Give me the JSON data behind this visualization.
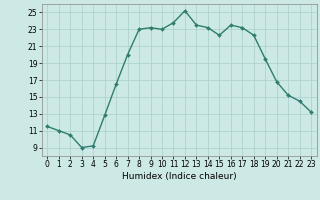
{
  "x": [
    0,
    1,
    2,
    3,
    4,
    5,
    6,
    7,
    8,
    9,
    10,
    11,
    12,
    13,
    14,
    15,
    16,
    17,
    18,
    19,
    20,
    21,
    22,
    23
  ],
  "y": [
    11.5,
    11.0,
    10.5,
    9.0,
    9.2,
    12.8,
    16.5,
    20.0,
    23.0,
    23.2,
    23.0,
    23.8,
    25.2,
    23.5,
    23.2,
    22.3,
    23.5,
    23.2,
    22.3,
    19.5,
    16.8,
    15.2,
    14.5,
    13.2
  ],
  "line_color": "#2e7d6e",
  "marker": "D",
  "marker_size": 2,
  "bg_color": "#cce9e5",
  "grid_color": "#aacfcc",
  "xlabel": "Humidex (Indice chaleur)",
  "ylim": [
    8,
    26
  ],
  "xlim": [
    -0.5,
    23.5
  ],
  "yticks": [
    9,
    11,
    13,
    15,
    17,
    19,
    21,
    23,
    25
  ],
  "xticks": [
    0,
    1,
    2,
    3,
    4,
    5,
    6,
    7,
    8,
    9,
    10,
    11,
    12,
    13,
    14,
    15,
    16,
    17,
    18,
    19,
    20,
    21,
    22,
    23
  ],
  "tick_fontsize": 5.5,
  "xlabel_fontsize": 6.5,
  "linewidth": 1.0
}
